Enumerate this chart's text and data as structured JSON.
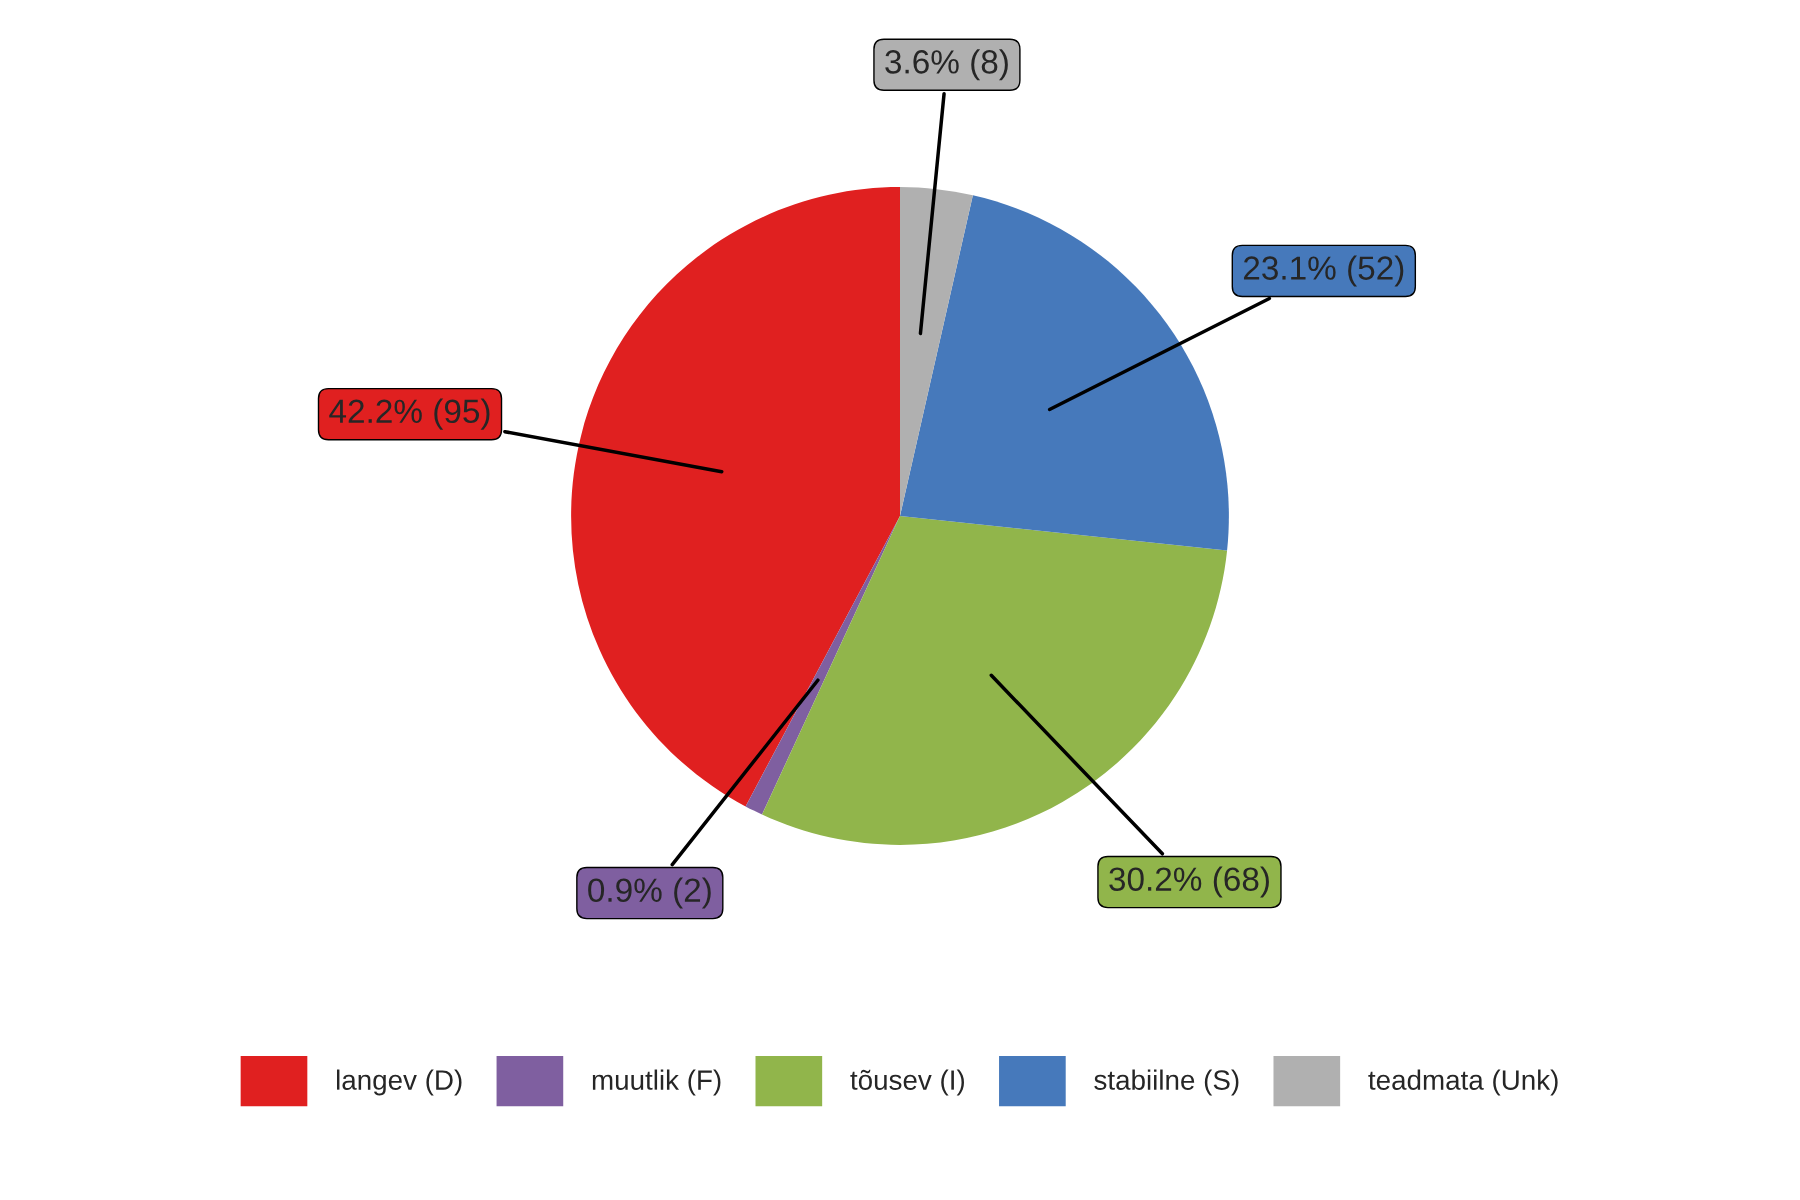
{
  "chart_data": {
    "type": "pie",
    "categories": [
      "langev (D)",
      "muutlik (F)",
      "tõusev (I)",
      "stabiilne (S)",
      "teadmata (Unk)"
    ],
    "values": [
      95,
      2,
      68,
      52,
      8
    ],
    "value_labels": [
      "42.2% (95)",
      "0.9% (2)",
      "30.2% (68)",
      "23.1% (52)",
      "3.6% (8)"
    ],
    "colors": [
      "#e02020",
      "#7f5fa0",
      "#91b54b",
      "#4679bb",
      "#b0b0b0"
    ],
    "legend": "bottom"
  }
}
